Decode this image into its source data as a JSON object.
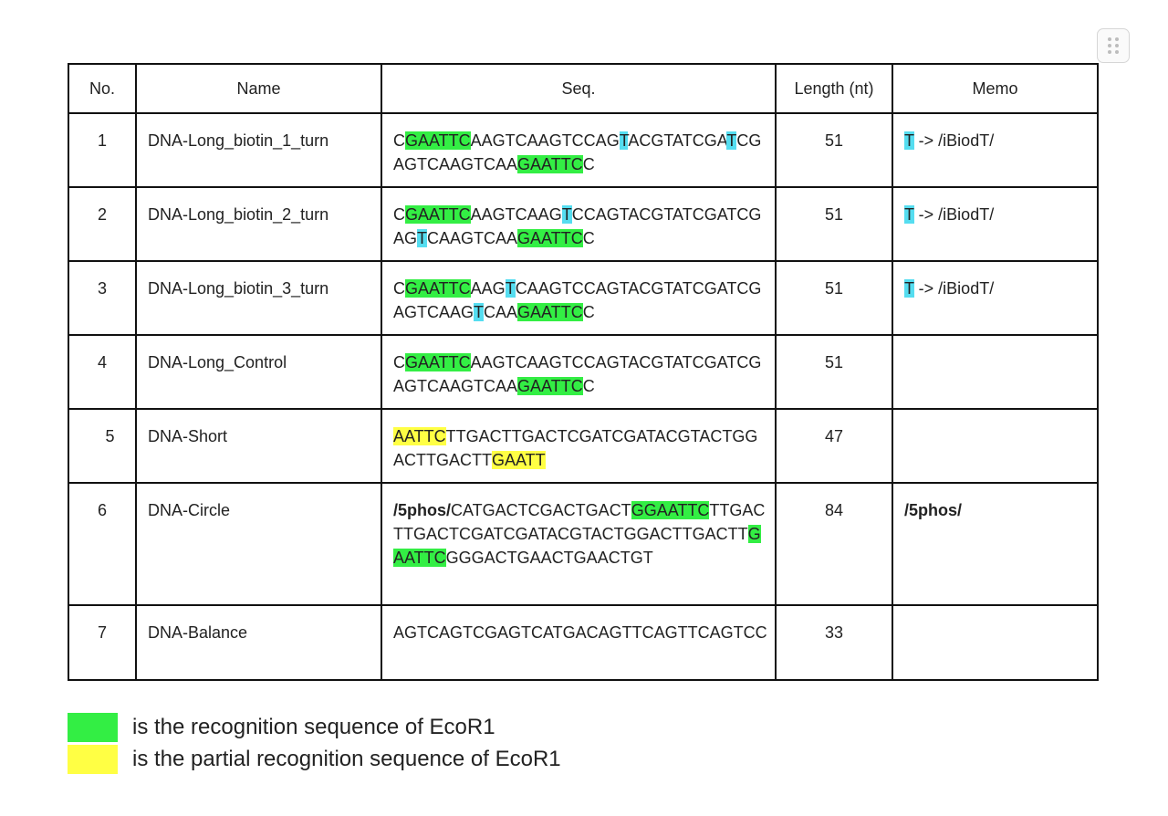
{
  "colors": {
    "recognition": "#33ee44",
    "partial": "#ffff44",
    "biotin": "#55ddf0"
  },
  "icons": {
    "handle": "drag-handle-icon"
  },
  "table": {
    "headers": [
      "No.",
      "Name",
      "Seq.",
      "Length (nt)",
      "Memo"
    ],
    "rows": [
      {
        "no": "1",
        "name": "DNA-Long_biotin_1_turn",
        "seq": [
          {
            "t": "C"
          },
          {
            "t": "GAATTC",
            "h": "g"
          },
          {
            "t": "AAGTCAAGTCCAG"
          },
          {
            "t": "T",
            "h": "b"
          },
          {
            "t": "ACGTATCGA"
          },
          {
            "t": "T",
            "h": "b"
          },
          {
            "t": "CGAGTCAAGTCAA"
          },
          {
            "t": "GAATTC",
            "h": "g"
          },
          {
            "t": "C"
          }
        ],
        "length": "51",
        "memo": [
          {
            "t": "T",
            "h": "b"
          },
          {
            "t": " -> /iBiodT/"
          }
        ]
      },
      {
        "no": "2",
        "name": "DNA-Long_biotin_2_turn",
        "seq": [
          {
            "t": "C"
          },
          {
            "t": "GAATTC",
            "h": "g"
          },
          {
            "t": "AAGTCAAG"
          },
          {
            "t": "T",
            "h": "b"
          },
          {
            "t": "CCAGTACGTATCGATCGAG"
          },
          {
            "t": "T",
            "h": "b"
          },
          {
            "t": "CAAGTCAA"
          },
          {
            "t": "GAATTC",
            "h": "g"
          },
          {
            "t": "C"
          }
        ],
        "length": "51",
        "memo": [
          {
            "t": "T",
            "h": "b"
          },
          {
            "t": " -> /iBiodT/"
          }
        ]
      },
      {
        "no": "3",
        "name": "DNA-Long_biotin_3_turn",
        "seq": [
          {
            "t": "C"
          },
          {
            "t": "GAATTC",
            "h": "g"
          },
          {
            "t": "AAG"
          },
          {
            "t": "T",
            "h": "b"
          },
          {
            "t": "CAAGTCCAGTACGTATCGATCGAGTCAAG"
          },
          {
            "t": "T",
            "h": "b"
          },
          {
            "t": "CAA"
          },
          {
            "t": "GAATTC",
            "h": "g"
          },
          {
            "t": "C"
          }
        ],
        "length": "51",
        "memo": [
          {
            "t": "T",
            "h": "b"
          },
          {
            "t": " -> /iBiodT/"
          }
        ]
      },
      {
        "no": "4",
        "name": "DNA-Long_Control",
        "seq": [
          {
            "t": "C"
          },
          {
            "t": "GAATTC",
            "h": "g"
          },
          {
            "t": "AAGTCAAGTCCAGTACGTATCGATCGAGTCAAGTCAA"
          },
          {
            "t": "GAATTC",
            "h": "g"
          },
          {
            "t": "C"
          }
        ],
        "length": "51",
        "memo": []
      },
      {
        "no": "5",
        "name": "DNA-Short",
        "seq": [
          {
            "t": "AATTC",
            "h": "y"
          },
          {
            "t": "TTGACTTGACTCGATCGATACGTACTGGACTTGACTT"
          },
          {
            "t": "GAATT",
            "h": "y"
          }
        ],
        "length": "47",
        "memo": []
      },
      {
        "no": "6",
        "name": "DNA-Circle",
        "seq": [
          {
            "t": "/5phos/",
            "h": "bold"
          },
          {
            "t": "CATGACTCGACTGACT"
          },
          {
            "t": "GGAATTC",
            "h": "g"
          },
          {
            "t": "TTGACTTGACTCGATCGATACGTACTGGACTTGACTT"
          },
          {
            "t": "GAATTC",
            "h": "g"
          },
          {
            "t": "GGGACTGAACTGAACTGT"
          }
        ],
        "length": "84",
        "memo": [
          {
            "t": "/5phos/",
            "h": "bold"
          }
        ]
      },
      {
        "no": "7",
        "name": "DNA-Balance",
        "seq": [
          {
            "t": "AGTCAGTCGAGTCATGACAGTTCAGTTCAGTCC"
          }
        ],
        "length": "33",
        "memo": []
      }
    ]
  },
  "legend": [
    {
      "color": "#33ee44",
      "text": "is the recognition sequence of EcoR1"
    },
    {
      "color": "#ffff44",
      "text": "is the partial recognition sequence of EcoR1"
    }
  ]
}
